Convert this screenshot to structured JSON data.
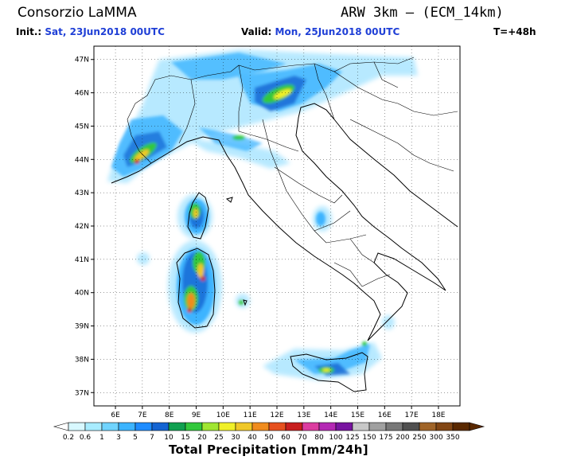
{
  "header": {
    "org": "Consorzio LaMMA",
    "model": "ARW 3km – (ECM_14km)",
    "init_label": "Init.:",
    "init_value": "Sat, 23Jun2018 00UTC",
    "valid_label": "Valid:",
    "valid_value": "Mon, 25Jun2018 00UTC",
    "timestep": "T=+48h"
  },
  "map": {
    "lat_ticks": [
      "47N",
      "46N",
      "45N",
      "44N",
      "43N",
      "42N",
      "41N",
      "40N",
      "39N",
      "38N",
      "37N"
    ],
    "lon_ticks": [
      "6E",
      "7E",
      "8E",
      "9E",
      "10E",
      "11E",
      "12E",
      "13E",
      "14E",
      "15E",
      "16E",
      "17E",
      "18E"
    ],
    "lat_range": [
      36.6,
      47.4
    ],
    "lon_range": [
      5.2,
      18.8
    ]
  },
  "colorbar": {
    "title": "Total Precipitation [mm/24h]",
    "labels": [
      "0.2",
      "0.6",
      "1",
      "3",
      "5",
      "7",
      "10",
      "15",
      "20",
      "25",
      "30",
      "40",
      "50",
      "60",
      "70",
      "80",
      "100",
      "125",
      "150",
      "175",
      "200",
      "250",
      "300",
      "350"
    ],
    "colors": [
      "#d8f8ff",
      "#a8ecff",
      "#70d4ff",
      "#3cb4ff",
      "#1e8cff",
      "#1464d2",
      "#10a050",
      "#32c83c",
      "#a0e632",
      "#f0f028",
      "#f0c828",
      "#f08c1e",
      "#e6501e",
      "#c81e1e",
      "#dc3ca0",
      "#b428b4",
      "#7814a0",
      "#c8c8c8",
      "#a0a0a0",
      "#787878",
      "#505050",
      "#a06428",
      "#824614",
      "#5a2800"
    ]
  }
}
